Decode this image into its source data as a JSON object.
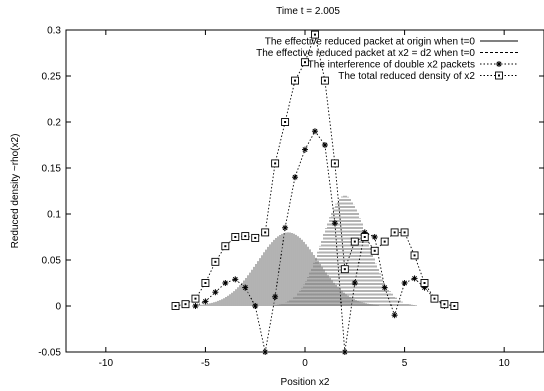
{
  "chart_data": {
    "type": "line",
    "title": "Time t = 2.005",
    "xlabel": "Position x2",
    "ylabel": "Reduced density ~rho(x2)",
    "xlim": [
      -12,
      12
    ],
    "ylim": [
      -0.05,
      0.3
    ],
    "x_ticks": [
      -10,
      -5,
      0,
      5,
      10
    ],
    "y_ticks": [
      -0.05,
      0,
      0.05,
      0.1,
      0.15,
      0.2,
      0.25,
      0.3
    ],
    "x_tick_labels": [
      "-10",
      "-5",
      "0",
      "5",
      "10"
    ],
    "y_tick_labels": [
      "-0.05",
      "0",
      "0.05",
      "0.1",
      "0.15",
      "0.2",
      "0.25",
      "0.3"
    ],
    "grid": false,
    "legend_position": "top-right",
    "series": [
      {
        "name": "The effective reduced packet at origin when t=0",
        "style": "impulses-solid",
        "model": {
          "center": -0.85,
          "width": 2.15,
          "amplitude": 0.08
        }
      },
      {
        "name": "The effective reduced packet at x2 = d2 when t=0",
        "style": "impulses-dashed",
        "model": {
          "center": 2.0,
          "width": 1.6,
          "amplitude": 0.12
        }
      },
      {
        "name": "The interference of double x2 packets",
        "style": "star-dotted",
        "x": [
          -5.5,
          -5.0,
          -4.5,
          -4.0,
          -3.5,
          -3.0,
          -2.5,
          -2.0,
          -1.5,
          -1.0,
          -0.5,
          0.0,
          0.5,
          1.0,
          1.5,
          2.0,
          2.5,
          3.0,
          3.5,
          4.0,
          4.5,
          5.0,
          5.5,
          6.0,
          6.5,
          7.0
        ],
        "y": [
          0.0,
          0.005,
          0.015,
          0.025,
          0.029,
          0.02,
          0.0,
          -0.05,
          0.01,
          0.085,
          0.14,
          0.17,
          0.19,
          0.175,
          0.09,
          -0.05,
          0.025,
          0.08,
          0.075,
          0.02,
          -0.01,
          0.025,
          0.03,
          0.02,
          0.008,
          0.0
        ]
      },
      {
        "name": "The total reduced density of x2",
        "style": "box-dotted",
        "x": [
          -6.5,
          -6.0,
          -5.5,
          -5.0,
          -4.5,
          -4.0,
          -3.5,
          -3.0,
          -2.5,
          -2.0,
          -1.5,
          -1.0,
          -0.5,
          0.0,
          0.5,
          1.0,
          1.5,
          2.0,
          2.5,
          3.0,
          3.5,
          4.0,
          4.5,
          5.0,
          5.5,
          6.0,
          6.5,
          7.0,
          7.5
        ],
        "y": [
          0.0,
          0.002,
          0.008,
          0.025,
          0.048,
          0.065,
          0.075,
          0.076,
          0.074,
          0.08,
          0.155,
          0.2,
          0.245,
          0.265,
          0.295,
          0.245,
          0.155,
          0.04,
          0.07,
          0.075,
          0.06,
          0.07,
          0.08,
          0.08,
          0.055,
          0.025,
          0.008,
          0.002,
          0.0
        ]
      }
    ]
  }
}
